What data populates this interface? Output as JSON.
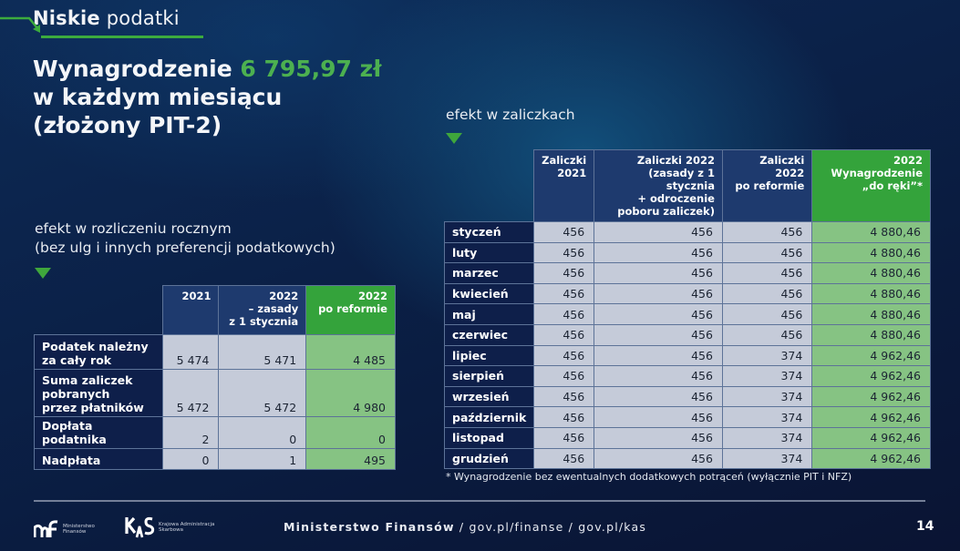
{
  "header": {
    "section_bold": "Niskie",
    "section_light": "podatki"
  },
  "title": {
    "prefix": "Wynagrodzenie ",
    "amount": "6 795,97 zł",
    "line2": "w każdym miesiącu",
    "line3": "(złożony PIT-2)"
  },
  "annual": {
    "subhead_line1": "efekt w rozliczeniu rocznym",
    "subhead_line2": "(bez ulg i innych preferencji podatkowych)",
    "columns": [
      {
        "label": "2021"
      },
      {
        "label": "2022 – zasady z 1 stycznia"
      },
      {
        "label": "2022 po reformie"
      }
    ],
    "column_lines": [
      [
        "2021"
      ],
      [
        "2022",
        "– zasady",
        "z 1 stycznia"
      ],
      [
        "2022",
        "po reformie"
      ]
    ],
    "rows": [
      {
        "label_lines": [
          "Podatek należny",
          "za cały rok"
        ],
        "values": [
          "5 474",
          "5 471",
          "4 485"
        ]
      },
      {
        "label_lines": [
          "Suma zaliczek",
          "pobranych",
          "przez płatników"
        ],
        "values": [
          "5 472",
          "5 472",
          "4 980"
        ]
      },
      {
        "label_lines": [
          "Dopłata podatnika"
        ],
        "values": [
          "2",
          "0",
          "0"
        ]
      },
      {
        "label_lines": [
          "Nadpłata"
        ],
        "values": [
          "0",
          "1",
          "495"
        ]
      }
    ]
  },
  "monthly": {
    "subhead": "efekt w zaliczkach",
    "column_lines": [
      [
        "Zaliczki",
        "2021"
      ],
      [
        "Zaliczki 2022",
        "(zasady z 1 stycznia",
        "+ odroczenie",
        "poboru zaliczek)"
      ],
      [
        "Zaliczki",
        "2022",
        "po reformie"
      ],
      [
        "2022",
        "Wynagrodzenie",
        "„do ręki”*"
      ]
    ],
    "rows": [
      {
        "month": "styczeń",
        "values": [
          "456",
          "456",
          "456",
          "4 880,46"
        ]
      },
      {
        "month": "luty",
        "values": [
          "456",
          "456",
          "456",
          "4 880,46"
        ]
      },
      {
        "month": "marzec",
        "values": [
          "456",
          "456",
          "456",
          "4 880,46"
        ]
      },
      {
        "month": "kwiecień",
        "values": [
          "456",
          "456",
          "456",
          "4 880,46"
        ]
      },
      {
        "month": "maj",
        "values": [
          "456",
          "456",
          "456",
          "4 880,46"
        ]
      },
      {
        "month": "czerwiec",
        "values": [
          "456",
          "456",
          "456",
          "4 880,46"
        ]
      },
      {
        "month": "lipiec",
        "values": [
          "456",
          "456",
          "374",
          "4 962,46"
        ]
      },
      {
        "month": "sierpień",
        "values": [
          "456",
          "456",
          "374",
          "4 962,46"
        ]
      },
      {
        "month": "wrzesień",
        "values": [
          "456",
          "456",
          "374",
          "4 962,46"
        ]
      },
      {
        "month": "październik",
        "values": [
          "456",
          "456",
          "374",
          "4 962,46"
        ]
      },
      {
        "month": "listopad",
        "values": [
          "456",
          "456",
          "374",
          "4 962,46"
        ]
      },
      {
        "month": "grudzień",
        "values": [
          "456",
          "456",
          "374",
          "4 962,46"
        ]
      }
    ],
    "footnote": "* Wynagrodzenie bez ewentualnych dodatkowych potrąceń (wyłącznie PIT i NFZ)"
  },
  "footer": {
    "logo1_mark": "mf",
    "logo1_text_1": "Ministerstwo",
    "logo1_text_2": "Finansów",
    "logo2_mark": "KAS",
    "logo2_text_1": "Krajowa Administracja",
    "logo2_text_2": "Skarbowa",
    "org": "Ministerstwo Finansów",
    "sep": "/",
    "link1": "gov.pl/finanse",
    "link2": "gov.pl/kas",
    "page_number": "14"
  },
  "colors": {
    "accent_green": "#4cb050",
    "header_navy": "#1e3a6e",
    "header_green": "#34a33b",
    "cell_gray": "#c5cbd9",
    "cell_green": "#86c383"
  }
}
